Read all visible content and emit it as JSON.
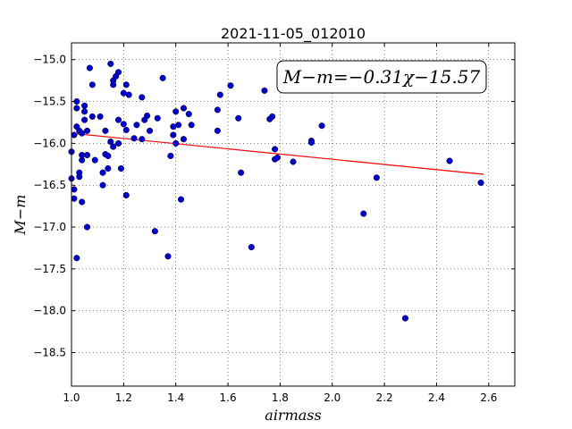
{
  "chart_data": {
    "type": "scatter",
    "title": "2021-11-05_012010",
    "xlabel": "airmass",
    "ylabel": "M−m",
    "xlim": [
      1.0,
      2.7
    ],
    "ylim": [
      -18.9,
      -14.8
    ],
    "y_inverted": true,
    "grid": true,
    "xticks": [
      1.0,
      1.2,
      1.4,
      1.6,
      1.8,
      2.0,
      2.2,
      2.4,
      2.6
    ],
    "xtick_labels": [
      "1.0",
      "1.2",
      "1.4",
      "1.6",
      "1.8",
      "2.0",
      "2.2",
      "2.4",
      "2.6"
    ],
    "yticks": [
      -15.0,
      -15.5,
      -16.0,
      -16.5,
      -17.0,
      -17.5,
      -18.0,
      -18.5
    ],
    "ytick_labels": [
      "−15.0",
      "−15.5",
      "−16.0",
      "−16.5",
      "−17.0",
      "−17.5",
      "−18.0",
      "−18.5"
    ],
    "annotation": "M−m=−0.31χ−15.57",
    "fit": {
      "slope": -0.31,
      "intercept": -15.57,
      "x_range": [
        1.0,
        2.58
      ],
      "color": "#ff0000"
    },
    "marker_color": "#0000cc",
    "points": [
      [
        1.0,
        -16.42
      ],
      [
        1.0,
        -16.1
      ],
      [
        1.01,
        -16.66
      ],
      [
        1.01,
        -16.55
      ],
      [
        1.01,
        -15.9
      ],
      [
        1.02,
        -15.5
      ],
      [
        1.02,
        -15.8
      ],
      [
        1.02,
        -15.58
      ],
      [
        1.02,
        -17.37
      ],
      [
        1.03,
        -16.4
      ],
      [
        1.03,
        -16.35
      ],
      [
        1.03,
        -15.85
      ],
      [
        1.04,
        -16.7
      ],
      [
        1.04,
        -16.2
      ],
      [
        1.04,
        -15.88
      ],
      [
        1.04,
        -16.14
      ],
      [
        1.05,
        -15.55
      ],
      [
        1.05,
        -15.62
      ],
      [
        1.05,
        -15.72
      ],
      [
        1.06,
        -17.0
      ],
      [
        1.06,
        -16.14
      ],
      [
        1.06,
        -15.85
      ],
      [
        1.07,
        -15.1
      ],
      [
        1.08,
        -15.3
      ],
      [
        1.08,
        -15.68
      ],
      [
        1.09,
        -16.2
      ],
      [
        1.11,
        -15.68
      ],
      [
        1.12,
        -16.5
      ],
      [
        1.12,
        -16.35
      ],
      [
        1.13,
        -16.13
      ],
      [
        1.13,
        -15.85
      ],
      [
        1.14,
        -16.3
      ],
      [
        1.14,
        -16.15
      ],
      [
        1.15,
        -15.98
      ],
      [
        1.15,
        -15.05
      ],
      [
        1.16,
        -15.25
      ],
      [
        1.16,
        -15.3
      ],
      [
        1.16,
        -16.04
      ],
      [
        1.17,
        -15.2
      ],
      [
        1.18,
        -15.72
      ],
      [
        1.18,
        -16.0
      ],
      [
        1.18,
        -15.15
      ],
      [
        1.19,
        -16.3
      ],
      [
        1.2,
        -15.4
      ],
      [
        1.2,
        -15.77
      ],
      [
        1.21,
        -15.3
      ],
      [
        1.21,
        -15.84
      ],
      [
        1.21,
        -16.62
      ],
      [
        1.22,
        -15.42
      ],
      [
        1.24,
        -15.94
      ],
      [
        1.25,
        -15.78
      ],
      [
        1.27,
        -15.45
      ],
      [
        1.27,
        -15.95
      ],
      [
        1.28,
        -15.72
      ],
      [
        1.29,
        -15.67
      ],
      [
        1.3,
        -15.85
      ],
      [
        1.32,
        -17.05
      ],
      [
        1.33,
        -15.7
      ],
      [
        1.35,
        -15.22
      ],
      [
        1.37,
        -17.35
      ],
      [
        1.38,
        -16.15
      ],
      [
        1.39,
        -15.8
      ],
      [
        1.39,
        -15.9
      ],
      [
        1.4,
        -15.62
      ],
      [
        1.4,
        -16.0
      ],
      [
        1.41,
        -15.78
      ],
      [
        1.42,
        -16.67
      ],
      [
        1.43,
        -15.95
      ],
      [
        1.43,
        -15.58
      ],
      [
        1.45,
        -15.65
      ],
      [
        1.46,
        -15.78
      ],
      [
        1.56,
        -15.6
      ],
      [
        1.56,
        -15.85
      ],
      [
        1.57,
        -15.42
      ],
      [
        1.61,
        -15.31
      ],
      [
        1.64,
        -15.7
      ],
      [
        1.65,
        -16.35
      ],
      [
        1.69,
        -17.24
      ],
      [
        1.74,
        -15.37
      ],
      [
        1.76,
        -15.71
      ],
      [
        1.77,
        -15.68
      ],
      [
        1.78,
        -16.19
      ],
      [
        1.78,
        -16.07
      ],
      [
        1.79,
        -16.17
      ],
      [
        1.85,
        -16.22
      ],
      [
        1.92,
        -15.97
      ],
      [
        1.92,
        -15.99
      ],
      [
        1.96,
        -15.79
      ],
      [
        2.12,
        -16.84
      ],
      [
        2.17,
        -16.41
      ],
      [
        2.28,
        -18.09
      ],
      [
        2.45,
        -16.21
      ],
      [
        2.57,
        -16.47
      ]
    ]
  }
}
